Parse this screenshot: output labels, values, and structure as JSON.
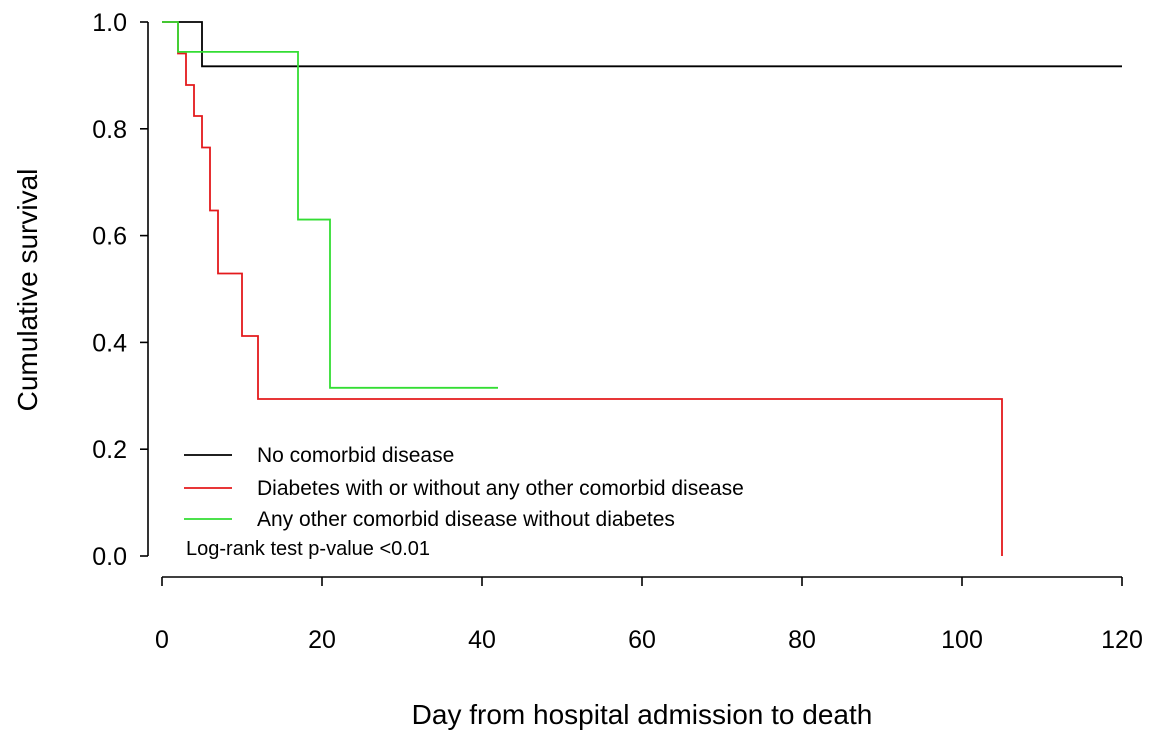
{
  "chart_data": {
    "type": "line",
    "step": true,
    "xlabel": "Day from hospital admission to death",
    "ylabel": "Cumulative survival",
    "xlim": [
      0,
      120
    ],
    "ylim": [
      0,
      1
    ],
    "xticks": [
      0,
      20,
      40,
      60,
      80,
      100,
      120
    ],
    "yticks": [
      "0.0",
      "0.2",
      "0.4",
      "0.6",
      "0.8",
      "1.0"
    ],
    "grid": false,
    "legend_position": "bottom-left",
    "series": [
      {
        "name": "No comorbid disease",
        "color": "#000000",
        "x": [
          0,
          5,
          120
        ],
        "y": [
          1.0,
          0.917,
          0.917
        ]
      },
      {
        "name": "Diabetes with or without any other comorbid disease",
        "color": "#e41a1c",
        "x": [
          0,
          2,
          3,
          4,
          5,
          6,
          7,
          10,
          12,
          105,
          105
        ],
        "y": [
          1.0,
          0.941,
          0.882,
          0.824,
          0.765,
          0.647,
          0.529,
          0.412,
          0.294,
          0.294,
          0.0
        ]
      },
      {
        "name": "Any other comorbid disease without diabetes",
        "color": "#33dd33",
        "x": [
          0,
          2,
          17,
          21,
          42
        ],
        "y": [
          1.0,
          0.944,
          0.63,
          0.315,
          0.315
        ]
      }
    ],
    "annotations": [
      "Log-rank test p-value <0.01"
    ]
  }
}
